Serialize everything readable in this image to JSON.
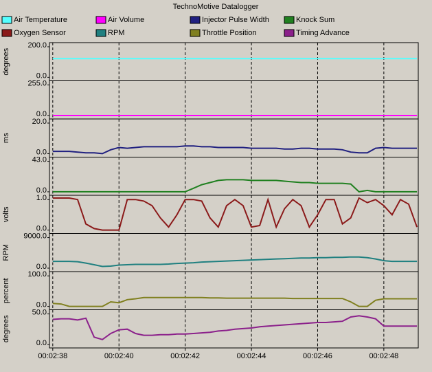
{
  "title": "TechnoMotive Datalogger",
  "x": [
    158,
    158.25,
    158.5,
    158.75,
    159,
    159.25,
    159.5,
    159.75,
    160,
    160.25,
    160.5,
    160.75,
    161,
    161.25,
    161.5,
    161.75,
    162,
    162.25,
    162.5,
    162.75,
    163,
    163.25,
    163.5,
    163.75,
    164,
    164.25,
    164.5,
    164.75,
    165,
    165.25,
    165.5,
    165.75,
    166,
    166.25,
    166.5,
    166.75,
    167,
    167.25,
    167.5,
    167.75,
    168,
    168.25,
    168.5,
    168.75,
    169
  ],
  "xlim": [
    157.9,
    169.04
  ],
  "xticks": [
    {
      "value": 158,
      "label": "00:02:38"
    },
    {
      "value": 160,
      "label": "00:02:40"
    },
    {
      "value": 162,
      "label": "00:02:42"
    },
    {
      "value": 164,
      "label": "00:02:44"
    },
    {
      "value": 166,
      "label": "00:02:46"
    },
    {
      "value": 168,
      "label": "00:02:48"
    }
  ],
  "grid": true,
  "chart_data": [
    {
      "type": "line",
      "ylabel": "degrees",
      "ylim": [
        -23,
        227
      ],
      "yticks": [
        {
          "value": 200,
          "label": "200.0"
        },
        {
          "value": 0,
          "label": "0.0"
        }
      ],
      "series": [
        {
          "name": "Air Temperature",
          "color": "#55ffff",
          "values": [
            122,
            122,
            122,
            122,
            122,
            122,
            122,
            122,
            122,
            122,
            122,
            122,
            122,
            122,
            122,
            122,
            122,
            122,
            122,
            122,
            122,
            122,
            122,
            122,
            122,
            122,
            122,
            122,
            122,
            122,
            122,
            122,
            122,
            122,
            122,
            122,
            122,
            122,
            122,
            122,
            122,
            122,
            122,
            122,
            122
          ]
        }
      ]
    },
    {
      "type": "line",
      "ylim": [
        -29,
        290
      ],
      "yticks": [
        {
          "value": 255,
          "label": "255.0"
        },
        {
          "value": 0,
          "label": "0.0"
        }
      ],
      "series": [
        {
          "name": "Air Volume",
          "color": "#ff00ff",
          "values": [
            0,
            0,
            0,
            0,
            0,
            0,
            0,
            0,
            0,
            0,
            0,
            0,
            0,
            0,
            0,
            0,
            0,
            0,
            0,
            0,
            0,
            0,
            0,
            0,
            0,
            0,
            0,
            0,
            0,
            0,
            0,
            0,
            0,
            0,
            0,
            0,
            0,
            0,
            0,
            0,
            0,
            0,
            0,
            0,
            0
          ]
        }
      ]
    },
    {
      "type": "line",
      "ylabel": "ms",
      "ylim": [
        -2.3,
        22.7
      ],
      "yticks": [
        {
          "value": 20,
          "label": "20.0"
        },
        {
          "value": 0,
          "label": "0.0"
        }
      ],
      "series": [
        {
          "name": "Injector Pulse Width",
          "color": "#202080",
          "values": [
            1.5,
            1.5,
            1.5,
            1.0,
            0.5,
            0.5,
            0,
            2.5,
            4,
            3.5,
            4,
            4.5,
            4.5,
            4.5,
            4.5,
            4.5,
            5,
            5,
            4.5,
            4.5,
            4,
            4,
            4,
            4,
            3.5,
            3.5,
            3.5,
            3.5,
            3,
            3,
            3.5,
            3.5,
            3,
            3,
            3,
            2.5,
            1,
            0.5,
            0.5,
            3.5,
            4,
            3.5,
            3.5,
            3.5,
            3.5
          ]
        }
      ]
    },
    {
      "type": "line",
      "ylim": [
        -4.9,
        48.9
      ],
      "yticks": [
        {
          "value": 43,
          "label": "43.0"
        },
        {
          "value": 0,
          "label": "0.0"
        }
      ],
      "series": [
        {
          "name": "Knock Sum",
          "color": "#208020",
          "values": [
            0,
            0,
            0,
            0,
            0,
            0,
            0,
            0,
            0,
            0,
            0,
            0,
            0,
            0,
            0,
            0,
            0,
            5,
            10,
            13,
            16,
            17,
            17,
            17,
            16,
            16,
            16,
            16,
            15,
            14,
            13,
            13,
            12,
            12,
            12,
            12,
            11,
            0,
            2,
            0,
            0,
            0,
            0,
            0,
            0
          ]
        }
      ]
    },
    {
      "type": "line",
      "ylabel": "volts",
      "ylim": [
        -0.11,
        1.14
      ],
      "yticks": [
        {
          "value": 1,
          "label": "1.0"
        },
        {
          "value": 0,
          "label": "0.0"
        }
      ],
      "series": [
        {
          "name": "Oxygen Sensor",
          "color": "#8b1a1a",
          "values": [
            1.05,
            1.05,
            1.05,
            1.0,
            0.2,
            0.05,
            0,
            0,
            0,
            1.0,
            1.0,
            0.95,
            0.8,
            0.4,
            0.1,
            0.5,
            1.0,
            1.0,
            0.95,
            0.4,
            0.1,
            0.8,
            1.0,
            0.8,
            0.1,
            0.15,
            1.0,
            0.1,
            0.7,
            1.0,
            0.8,
            0.1,
            0.5,
            1.0,
            1.0,
            0.2,
            0.4,
            1.05,
            0.9,
            1.0,
            0.8,
            0.5,
            1.0,
            0.85,
            0.1
          ]
        }
      ]
    },
    {
      "type": "line",
      "ylabel": "RPM",
      "ylim": [
        -1020,
        10230
      ],
      "yticks": [
        {
          "value": 9000,
          "label": "9000.0"
        },
        {
          "value": 0,
          "label": "0.0"
        }
      ],
      "series": [
        {
          "name": "RPM",
          "color": "#208080",
          "values": [
            2000,
            2000,
            2000,
            1900,
            1500,
            1000,
            500,
            600,
            900,
            1000,
            1100,
            1100,
            1100,
            1100,
            1200,
            1400,
            1500,
            1600,
            1800,
            1900,
            2000,
            2100,
            2200,
            2300,
            2400,
            2500,
            2600,
            2700,
            2800,
            2900,
            3000,
            3000,
            3100,
            3100,
            3200,
            3200,
            3300,
            3300,
            3100,
            2700,
            2200,
            2000,
            2000,
            2000,
            2000
          ]
        }
      ]
    },
    {
      "type": "line",
      "ylabel": "percent",
      "ylim": [
        -11,
        114
      ],
      "yticks": [
        {
          "value": 100,
          "label": "100.0"
        },
        {
          "value": 0,
          "label": "0.0"
        }
      ],
      "series": [
        {
          "name": "Throttle Position",
          "color": "#808020",
          "values": [
            10,
            8,
            0,
            0,
            0,
            0,
            0,
            15,
            12,
            22,
            25,
            29,
            29,
            29,
            29,
            29,
            29,
            29,
            29,
            28,
            28,
            27,
            27,
            27,
            27,
            27,
            27,
            27,
            27,
            26,
            26,
            26,
            26,
            26,
            26,
            26,
            15,
            0,
            0,
            20,
            25,
            25,
            25,
            25,
            25
          ]
        }
      ]
    },
    {
      "type": "line",
      "ylabel": "degrees",
      "ylim": [
        -5.7,
        56.8
      ],
      "yticks": [
        {
          "value": 50,
          "label": "50.0"
        },
        {
          "value": 0,
          "label": "0.0"
        }
      ],
      "series": [
        {
          "name": "Timing Advance",
          "color": "#8b208b",
          "values": [
            41,
            42,
            42,
            40,
            43,
            12,
            8,
            18,
            24,
            25,
            18,
            15,
            15,
            16,
            16,
            17,
            17,
            18,
            19,
            20,
            22,
            23,
            25,
            26,
            27,
            29,
            30,
            31,
            32,
            33,
            34,
            35,
            36,
            36,
            37,
            38,
            45,
            47,
            45,
            42,
            30,
            30,
            30,
            30,
            30
          ]
        }
      ]
    }
  ]
}
